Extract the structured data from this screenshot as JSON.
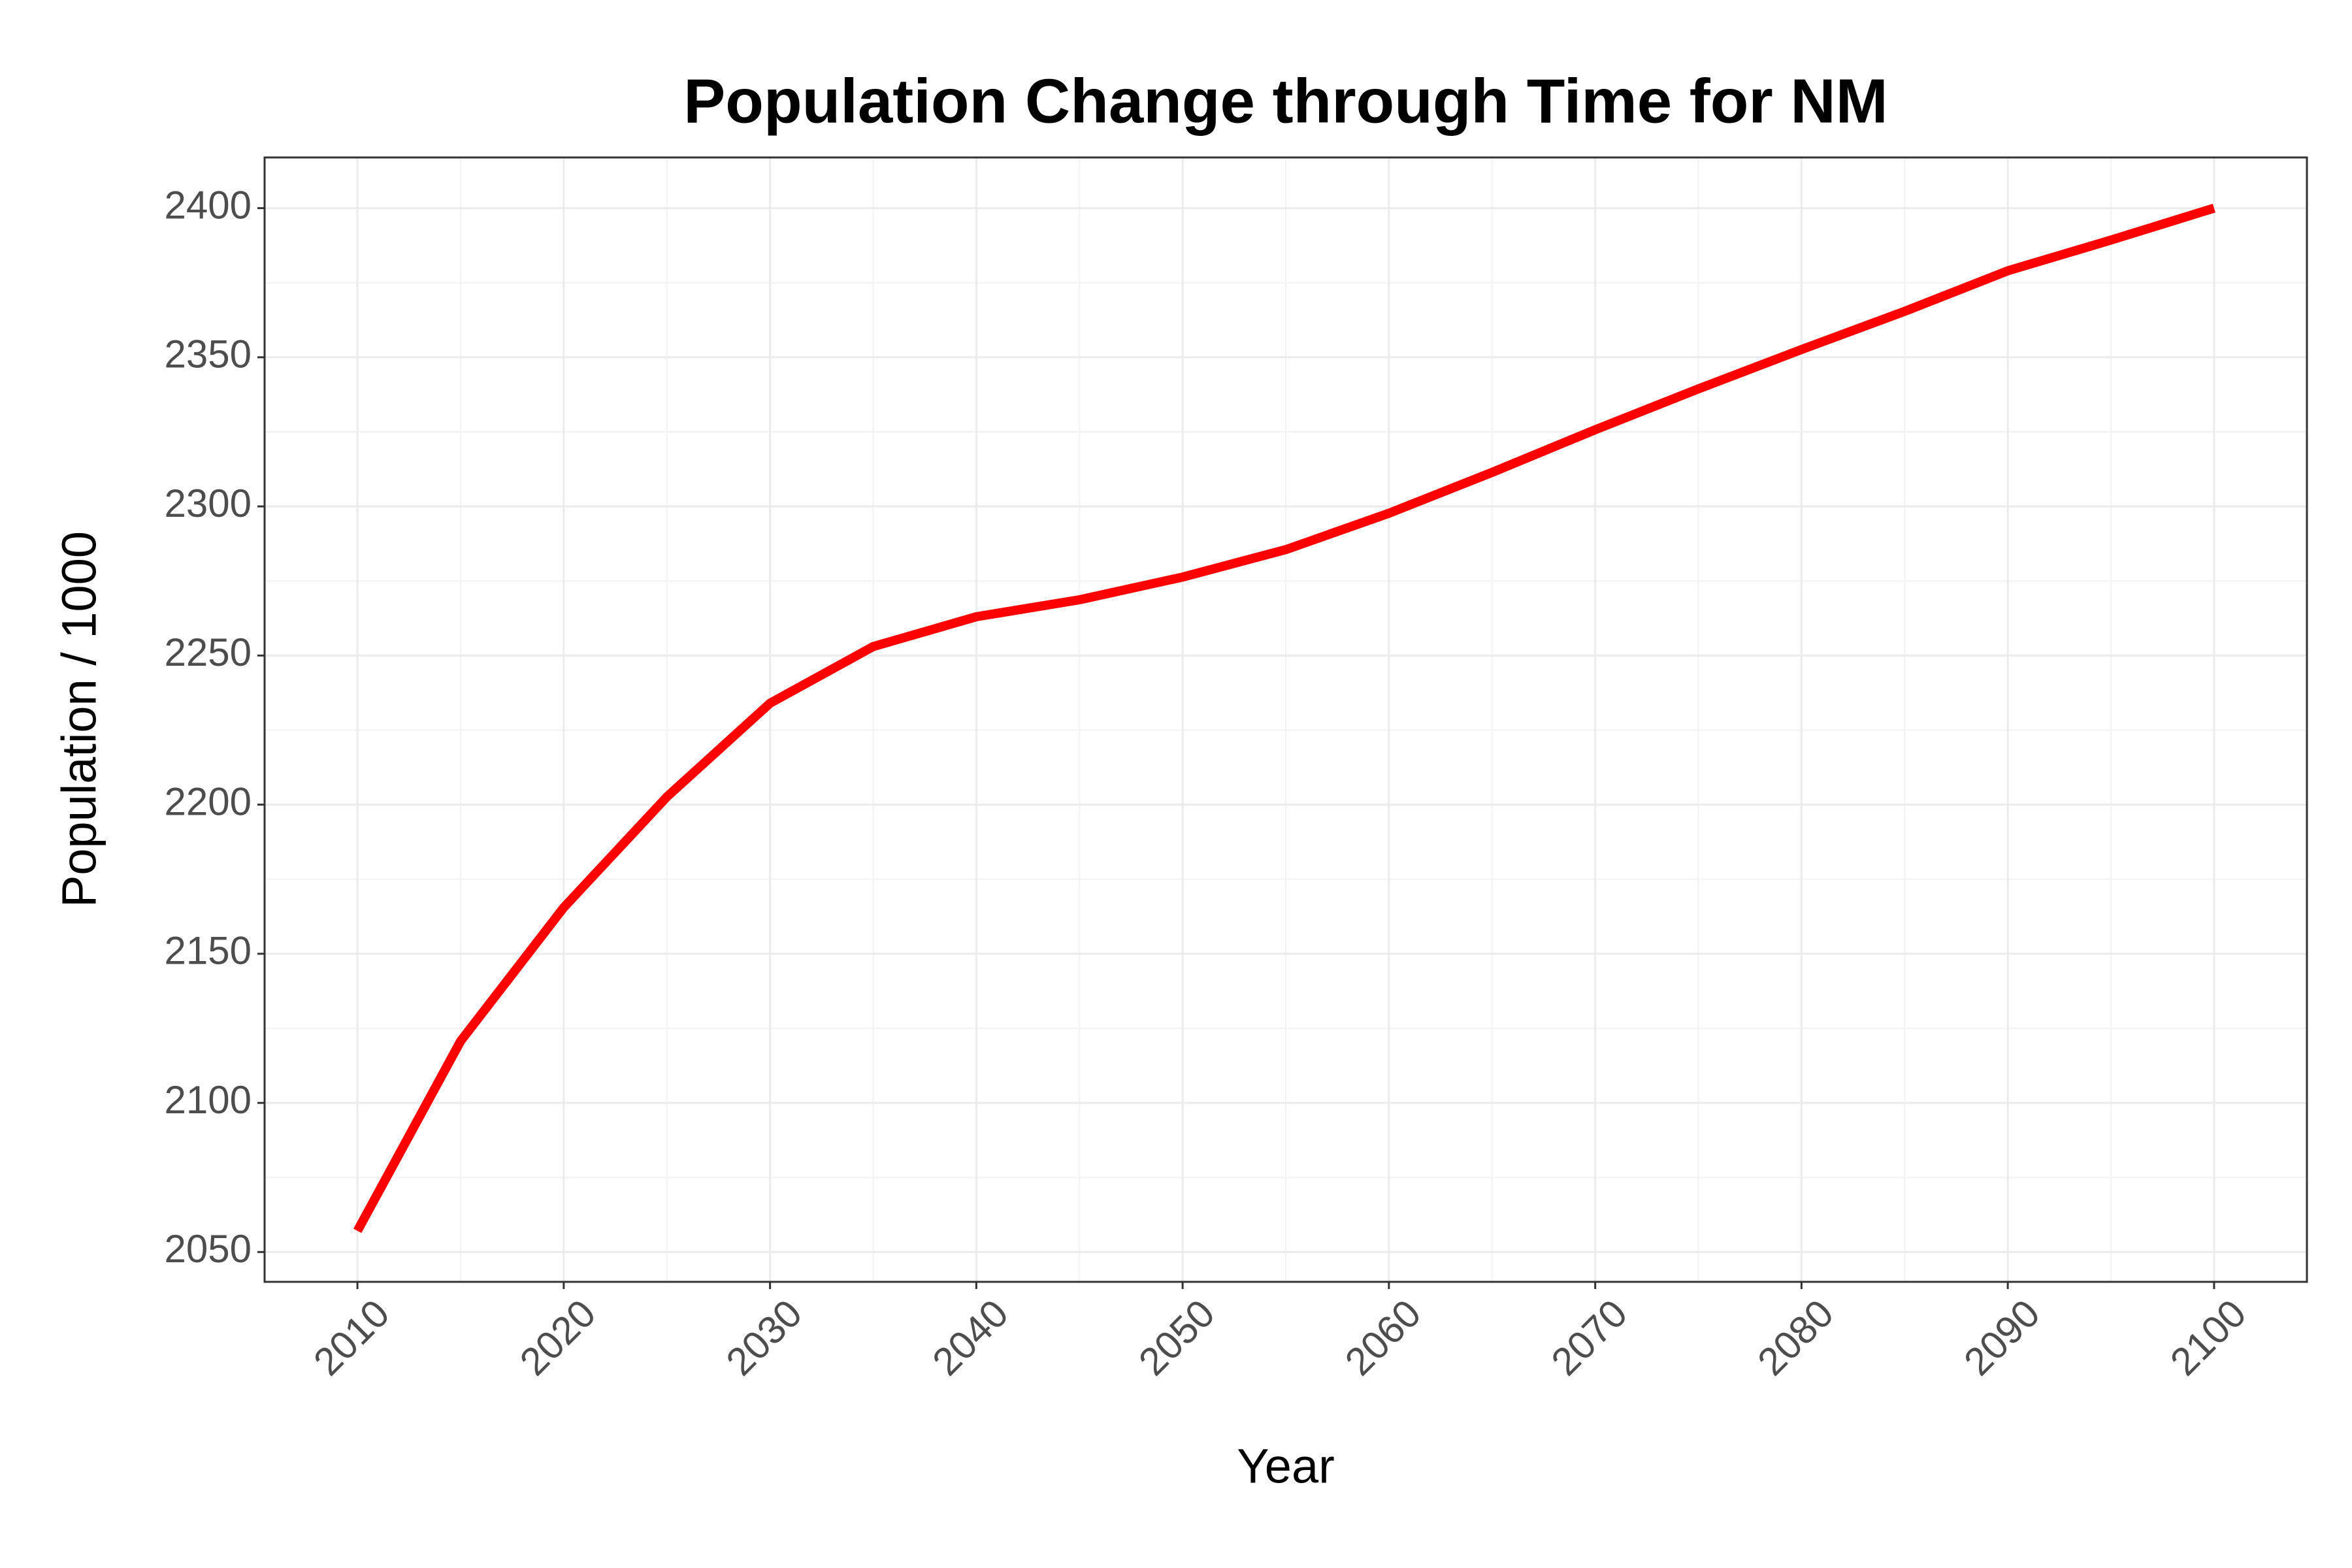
{
  "chart_data": {
    "type": "line",
    "title": "Population Change through Time for NM",
    "x_label": "Year",
    "y_label": "Population / 1000",
    "x": [
      2010,
      2015,
      2020,
      2025,
      2030,
      2035,
      2040,
      2045,
      2050,
      2055,
      2060,
      2065,
      2070,
      2075,
      2080,
      2085,
      2090,
      2095,
      2100
    ],
    "series": [
      {
        "name": "Population",
        "color": "#ff0000",
        "values": [
          2057.1,
          2120.7,
          2165.5,
          2202.6,
          2234,
          2253,
          2263,
          2268.7,
          2276.3,
          2285.5,
          2297.7,
          2311.4,
          2325.7,
          2339.4,
          2352.6,
          2365.4,
          2379,
          2389.3,
          2400
        ]
      }
    ],
    "xlim": [
      2005.5,
      2104.5
    ],
    "ylim": [
      2040,
      2417
    ],
    "xticks": [
      2010,
      2020,
      2030,
      2040,
      2050,
      2060,
      2070,
      2080,
      2090,
      2100
    ],
    "yticks": [
      2050,
      2100,
      2150,
      2200,
      2250,
      2300,
      2350,
      2400
    ],
    "minor_xticks": [
      2015,
      2025,
      2035,
      2045,
      2055,
      2065,
      2075,
      2085,
      2095
    ],
    "minor_yticks": [
      2075,
      2125,
      2175,
      2225,
      2275,
      2325,
      2375
    ],
    "grid": true
  }
}
